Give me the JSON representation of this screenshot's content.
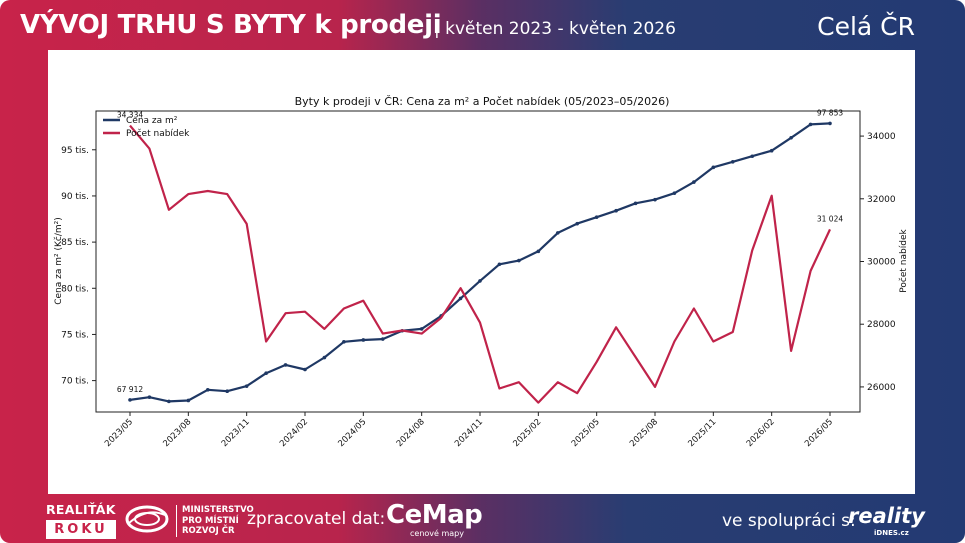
{
  "header": {
    "title": "VÝVOJ TRHU S BYTY k prodeji",
    "subtitle": "| květen 2023 - květen 2026",
    "region": "Celá ČR"
  },
  "footer": {
    "realitak_line1": "REALIŤÁK",
    "realitak_line2": "ROKU",
    "ministry_line1": "MINISTERSTVO",
    "ministry_line2": "PRO MÍSTNÍ",
    "ministry_line3": "ROZVOJ ČR",
    "processed_by": "zpracovatel dat:",
    "cemap_name": "CeMap",
    "cemap_tagline": "cenové mapy",
    "cooperation": "ve spolupráci s:",
    "reality_name": "reality",
    "reality_domain": "iDNES.cz"
  },
  "colors": {
    "price_series": "#1f3864",
    "offers_series": "#c0234a"
  },
  "chart_data": {
    "type": "line",
    "title": "Byty k prodeji v ČR: Cena za m² a Počet nabídek (05/2023–05/2026)",
    "ylabel_left": "Cena za m² (Kč/m²)",
    "ylabel_right": "Počet nabídek",
    "x_tick_labels": [
      "2023/05",
      "2023/08",
      "2023/11",
      "2024/02",
      "2024/05",
      "2024/08",
      "2024/11",
      "2025/02",
      "2025/05",
      "2025/08",
      "2025/11",
      "2026/02",
      "2026/05"
    ],
    "y_left_ticks": [
      {
        "value": 70000,
        "label": "70 tis."
      },
      {
        "value": 75000,
        "label": "75 tis."
      },
      {
        "value": 80000,
        "label": "80 tis."
      },
      {
        "value": 85000,
        "label": "85 tis."
      },
      {
        "value": 90000,
        "label": "90 tis."
      },
      {
        "value": 95000,
        "label": "95 tis."
      }
    ],
    "y_right_ticks": [
      26000,
      28000,
      30000,
      32000,
      34000
    ],
    "ylim_left": [
      66600,
      99200
    ],
    "ylim_right": [
      25200,
      34800
    ],
    "legend_position": "top-left",
    "x": [
      "2023/05",
      "2023/06",
      "2023/07",
      "2023/08",
      "2023/09",
      "2023/10",
      "2023/11",
      "2023/12",
      "2024/01",
      "2024/02",
      "2024/03",
      "2024/04",
      "2024/05",
      "2024/06",
      "2024/07",
      "2024/08",
      "2024/09",
      "2024/10",
      "2024/11",
      "2024/12",
      "2025/01",
      "2025/02",
      "2025/03",
      "2025/04",
      "2025/05",
      "2025/06",
      "2025/07",
      "2025/08",
      "2025/09",
      "2025/10",
      "2025/11",
      "2025/12",
      "2026/01",
      "2026/02",
      "2026/03",
      "2026/04",
      "2026/05"
    ],
    "series": [
      {
        "name": "Cena za m²",
        "axis": "left",
        "values": [
          67912,
          68200,
          67750,
          67850,
          69000,
          68850,
          69400,
          70800,
          71700,
          71200,
          72500,
          74200,
          74400,
          74500,
          75400,
          75600,
          77000,
          78900,
          80800,
          82600,
          83000,
          84000,
          86000,
          87000,
          87700,
          88400,
          89200,
          89600,
          90300,
          91500,
          93100,
          93700,
          94300,
          94900,
          96300,
          97750,
          97853
        ],
        "labels": [
          {
            "index": 0,
            "text": "67 912"
          },
          {
            "index": 36,
            "text": "97 853"
          }
        ]
      },
      {
        "name": "Počet nabídek",
        "axis": "right",
        "values": [
          34334,
          33600,
          31650,
          32150,
          32250,
          32150,
          31200,
          27450,
          28350,
          28400,
          27850,
          28500,
          28750,
          27700,
          27800,
          27700,
          28200,
          29150,
          28050,
          25950,
          26150,
          25500,
          26150,
          25800,
          26800,
          27900,
          26950,
          26000,
          27450,
          28500,
          27450,
          27750,
          30350,
          32100,
          27150,
          29700,
          31024
        ],
        "labels": [
          {
            "index": 0,
            "text": "34 334"
          },
          {
            "index": 36,
            "text": "31 024"
          }
        ]
      }
    ]
  }
}
